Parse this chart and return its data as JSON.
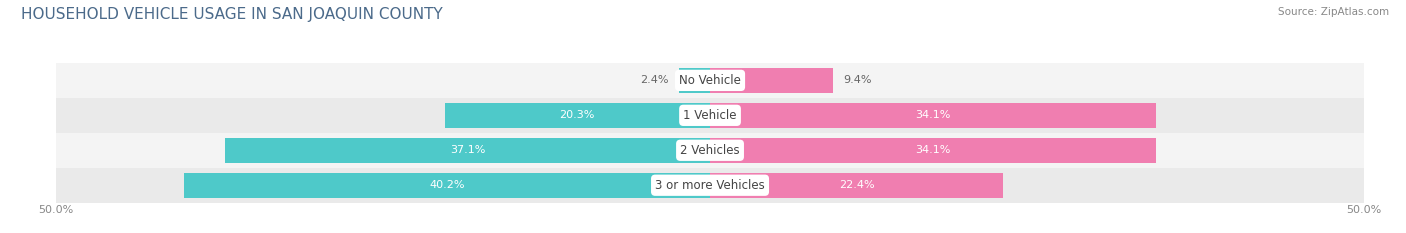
{
  "title": "HOUSEHOLD VEHICLE USAGE IN SAN JOAQUIN COUNTY",
  "source": "Source: ZipAtlas.com",
  "categories": [
    "No Vehicle",
    "1 Vehicle",
    "2 Vehicles",
    "3 or more Vehicles"
  ],
  "owner_values": [
    2.4,
    20.3,
    37.1,
    40.2
  ],
  "renter_values": [
    9.4,
    34.1,
    34.1,
    22.4
  ],
  "owner_color": "#4EC9C9",
  "renter_color": "#F07EB0",
  "xlim": 50.0,
  "bar_height": 0.72,
  "title_fontsize": 11,
  "label_fontsize": 8.5,
  "value_fontsize": 8.0,
  "axis_fontsize": 8,
  "legend_fontsize": 8.5,
  "fig_bg_color": "#FFFFFF",
  "row_bg_color_even": "#F4F4F4",
  "row_bg_color_odd": "#EAEAEA",
  "title_color": "#4B6A8A",
  "source_color": "#888888",
  "label_color": "#444444",
  "value_color_inside": "#FFFFFF",
  "value_color_outside": "#666666"
}
